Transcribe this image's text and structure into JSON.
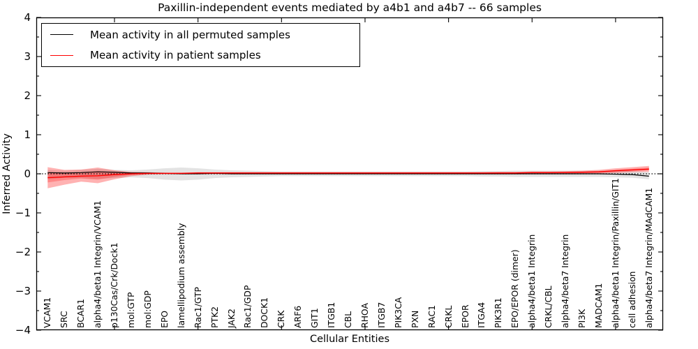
{
  "title": "Paxillin-independent events mediated by a4b1 and a4b7 -- 66 samples",
  "axes": {
    "ylabel": "Inferred Activity",
    "xlabel": "Cellular Entities",
    "ylim": [
      -4,
      4
    ],
    "yticks": [
      -4,
      -3,
      -2,
      -1,
      0,
      1,
      2,
      3,
      4
    ],
    "ytick_minor_step": 0.5,
    "xticks_major": [
      5,
      10,
      15,
      20,
      25,
      30,
      35
    ],
    "grid": "off"
  },
  "legend": {
    "position": "upper left",
    "items": [
      {
        "label": "Mean activity in all permuted samples",
        "color": "#000000"
      },
      {
        "label": "Mean activity in patient samples",
        "color": "#ff0000"
      }
    ]
  },
  "colors": {
    "permuted_line": "#000000",
    "patient_line": "#ff0000",
    "permuted_band": "#808080",
    "patient_band": "#ff0000",
    "zero_line": "#000000",
    "spine": "#000000",
    "background": "#ffffff"
  },
  "chart_data": {
    "type": "line",
    "title": "Paxillin-independent events mediated by a4b1 and a4b7 -- 66 samples",
    "xlabel": "Cellular Entities",
    "ylabel": "Inferred Activity",
    "ylim": [
      -4,
      4
    ],
    "zero_reference_line": {
      "y": 0,
      "style": "dotted",
      "color": "#000000"
    },
    "categories": [
      "VCAM1",
      "SRC",
      "BCAR1",
      "alpha4/beta1 Integrin/VCAM1",
      "p130Cas/Crk/Dock1",
      "mol:GTP",
      "mol:GDP",
      "EPO",
      "lamellipodium assembly",
      "Rac1/GTP",
      "PTK2",
      "JAK2",
      "Rac1/GDP",
      "DOCK1",
      "CRK",
      "ARF6",
      "GIT1",
      "ITGB1",
      "CBL",
      "RHOA",
      "ITGB7",
      "PIK3CA",
      "PXN",
      "RAC1",
      "CRKL",
      "EPOR",
      "ITGA4",
      "PIK3R1",
      "EPO/EPOR (dimer)",
      "alpha4/beta1 Integrin",
      "CRKL/CBL",
      "alpha4/beta7 Integrin",
      "PI3K",
      "MADCAM1",
      "alpha4/beta1 Integrin/Paxillin/GIT1",
      "cell adhesion",
      "alpha4/beta7 Integrin/MAdCAM1"
    ],
    "series": [
      {
        "name": "Mean activity in all permuted samples",
        "color": "#000000",
        "band_color": "#808080",
        "values": [
          0.03,
          0.02,
          0.03,
          0.05,
          0.04,
          0.02,
          0.02,
          0.01,
          0,
          0,
          0.01,
          0,
          0,
          0,
          0,
          0,
          0,
          0,
          0,
          0,
          0,
          0,
          0,
          0,
          0,
          0,
          0,
          0,
          0,
          0,
          0,
          0,
          0,
          0,
          -0.01,
          -0.02,
          -0.06
        ],
        "band_upper": [
          0.1,
          0.08,
          0.1,
          0.13,
          0.1,
          0.09,
          0.11,
          0.14,
          0.16,
          0.14,
          0.11,
          0.09,
          0.08,
          0.07,
          0.06,
          0.06,
          0.06,
          0.06,
          0.06,
          0.06,
          0.06,
          0.06,
          0.06,
          0.06,
          0.06,
          0.06,
          0.07,
          0.07,
          0.08,
          0.08,
          0.08,
          0.08,
          0.08,
          0.08,
          0.08,
          0.07,
          0.04
        ],
        "band_lower": [
          -0.14,
          -0.1,
          -0.11,
          -0.13,
          -0.11,
          -0.09,
          -0.11,
          -0.15,
          -0.17,
          -0.15,
          -0.11,
          -0.09,
          -0.08,
          -0.07,
          -0.06,
          -0.06,
          -0.06,
          -0.06,
          -0.06,
          -0.06,
          -0.06,
          -0.06,
          -0.06,
          -0.06,
          -0.06,
          -0.06,
          -0.07,
          -0.07,
          -0.08,
          -0.08,
          -0.08,
          -0.08,
          -0.08,
          -0.08,
          -0.09,
          -0.1,
          -0.14
        ]
      },
      {
        "name": "Mean activity in patient samples",
        "color": "#ff0000",
        "band_color": "#ff0000",
        "values": [
          -0.1,
          -0.08,
          -0.06,
          -0.05,
          -0.02,
          0,
          0.01,
          0.01,
          0.01,
          0.02,
          0.02,
          0.02,
          0.02,
          0.02,
          0.02,
          0.02,
          0.02,
          0.02,
          0.02,
          0.02,
          0.02,
          0.02,
          0.02,
          0.02,
          0.02,
          0.02,
          0.02,
          0.02,
          0.02,
          0.03,
          0.03,
          0.03,
          0.04,
          0.05,
          0.08,
          0.1,
          0.12
        ],
        "band_upper": [
          0.17,
          0.1,
          0.11,
          0.16,
          0.09,
          0.05,
          0.04,
          0.03,
          0.03,
          0.04,
          0.04,
          0.04,
          0.04,
          0.04,
          0.04,
          0.04,
          0.04,
          0.04,
          0.04,
          0.04,
          0.04,
          0.04,
          0.04,
          0.04,
          0.04,
          0.04,
          0.04,
          0.05,
          0.05,
          0.06,
          0.06,
          0.07,
          0.08,
          0.1,
          0.14,
          0.17,
          0.2
        ],
        "band_lower": [
          -0.37,
          -0.28,
          -0.2,
          -0.24,
          -0.14,
          -0.06,
          -0.02,
          -0.01,
          -0.01,
          0,
          0,
          0,
          0,
          0,
          0,
          0,
          0,
          0,
          0,
          0,
          0,
          0,
          0,
          0,
          0,
          0,
          0,
          0,
          0,
          0,
          0,
          0,
          0.01,
          0.01,
          0.02,
          0.04,
          0.05
        ],
        "band_inner_upper": [
          0.04,
          0.03,
          0.04,
          0.07,
          0.04,
          0.03,
          0.03,
          0.03,
          0.03,
          0.03,
          0.03,
          0.03,
          0.03,
          0.03,
          0.03,
          0.03,
          0.03,
          0.03,
          0.03,
          0.03,
          0.03,
          0.03,
          0.03,
          0.03,
          0.03,
          0.03,
          0.03,
          0.03,
          0.03,
          0.04,
          0.04,
          0.05,
          0.05,
          0.07,
          0.1,
          0.13,
          0.16
        ],
        "band_inner_lower": [
          -0.22,
          -0.16,
          -0.12,
          -0.15,
          -0.08,
          -0.03,
          -0.01,
          0,
          0,
          0.01,
          0.01,
          0.01,
          0.01,
          0.01,
          0.01,
          0.01,
          0.01,
          0.01,
          0.01,
          0.01,
          0.01,
          0.01,
          0.01,
          0.01,
          0.01,
          0.01,
          0.01,
          0.01,
          0.01,
          0.01,
          0.01,
          0.02,
          0.02,
          0.03,
          0.05,
          0.07,
          0.09
        ]
      }
    ]
  }
}
